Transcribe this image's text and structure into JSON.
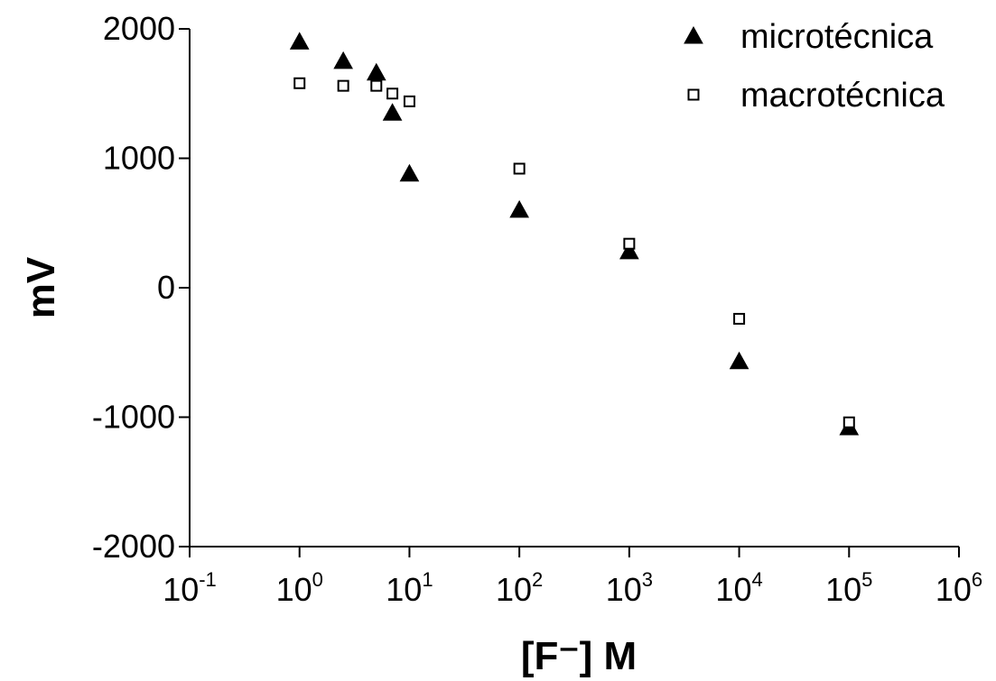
{
  "chart_data": {
    "type": "scatter",
    "xlabel": "[F⁻] M",
    "ylabel": "mV",
    "x_scale": "log",
    "xlim": [
      0.1,
      1000000
    ],
    "ylim": [
      -2000,
      2000
    ],
    "x_ticks": [
      0.1,
      1,
      10,
      100,
      1000,
      10000,
      100000,
      1000000
    ],
    "x_tick_labels": [
      {
        "base": "10",
        "exp": "-1"
      },
      {
        "base": "10",
        "exp": "0"
      },
      {
        "base": "10",
        "exp": "1"
      },
      {
        "base": "10",
        "exp": "2"
      },
      {
        "base": "10",
        "exp": "3"
      },
      {
        "base": "10",
        "exp": "4"
      },
      {
        "base": "10",
        "exp": "5"
      },
      {
        "base": "10",
        "exp": "6"
      }
    ],
    "y_ticks": [
      -2000,
      -1000,
      0,
      1000,
      2000
    ],
    "y_tick_labels": [
      "-2000",
      "-1000",
      "0",
      "1000",
      "2000"
    ],
    "grid": false,
    "legend_position": "top-right",
    "series": [
      {
        "name": "microtécnica",
        "marker": "filled-triangle",
        "color": "#000000",
        "points": [
          {
            "x": 1,
            "y": 1900
          },
          {
            "x": 2.5,
            "y": 1750
          },
          {
            "x": 5,
            "y": 1660
          },
          {
            "x": 7,
            "y": 1350
          },
          {
            "x": 10,
            "y": 880
          },
          {
            "x": 100,
            "y": 600
          },
          {
            "x": 1000,
            "y": 280
          },
          {
            "x": 10000,
            "y": -570
          },
          {
            "x": 100000,
            "y": -1080
          }
        ]
      },
      {
        "name": "macrotécnica",
        "marker": "open-square",
        "color": "#000000",
        "points": [
          {
            "x": 1,
            "y": 1580
          },
          {
            "x": 2.5,
            "y": 1560
          },
          {
            "x": 5,
            "y": 1560
          },
          {
            "x": 7,
            "y": 1500
          },
          {
            "x": 10,
            "y": 1440
          },
          {
            "x": 100,
            "y": 920
          },
          {
            "x": 1000,
            "y": 340
          },
          {
            "x": 10000,
            "y": -240
          },
          {
            "x": 100000,
            "y": -1040
          }
        ]
      }
    ]
  }
}
